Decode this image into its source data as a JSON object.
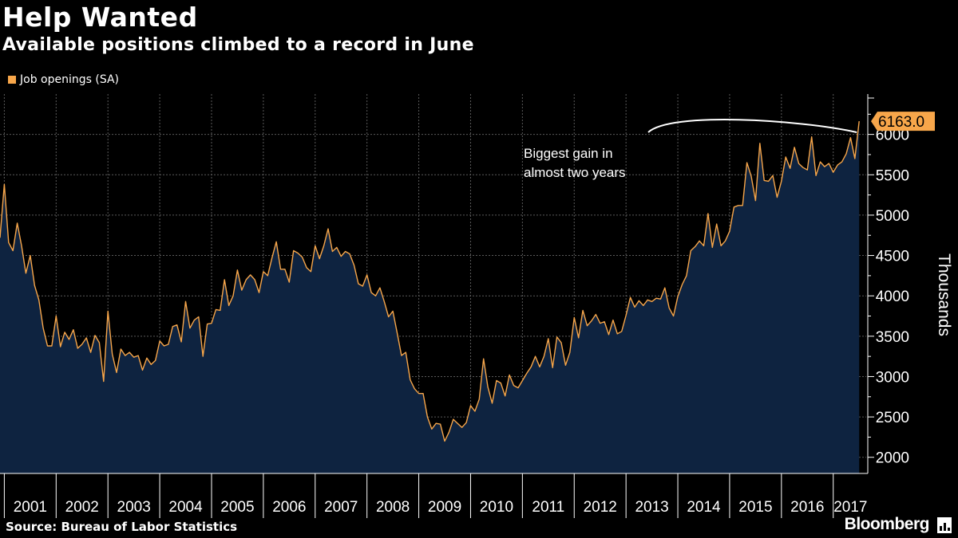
{
  "chart_data": {
    "type": "area",
    "title": "Help Wanted",
    "subtitle": "Available positions climbed to a record in June",
    "legend": [
      {
        "name": "Job openings (SA)",
        "color": "#F7A64A"
      }
    ],
    "legend_position": "top-left",
    "ylabel": "Thousands",
    "ylim": [
      1800,
      6500
    ],
    "yticks": [
      2000,
      2500,
      3000,
      3500,
      4000,
      4500,
      5000,
      5500,
      6000
    ],
    "ytick_labels": [
      "2000",
      "2500",
      "3000",
      "3500",
      "4000",
      "4500",
      "5000",
      "5500",
      "6000"
    ],
    "y_axis_side": "right",
    "xlim": [
      2000.9167,
      2017.6667
    ],
    "x_tick_labels": [
      "2001",
      "2002",
      "2003",
      "2004",
      "2005",
      "2006",
      "2007",
      "2008",
      "2009",
      "2010",
      "2011",
      "2012",
      "2013",
      "2014",
      "2015",
      "2016",
      "2017"
    ],
    "grid": true,
    "line_color": "#F7A64A",
    "fill_color": "#0E2340",
    "last_value_label": "6163.0",
    "annotation": {
      "text": [
        "Biggest gain in",
        "almost two years"
      ]
    },
    "series": [
      {
        "name": "Job openings (SA)",
        "start": "2000-12",
        "frequency": "monthly",
        "values": [
          4720,
          5380,
          4660,
          4560,
          4900,
          4620,
          4280,
          4500,
          4130,
          3950,
          3600,
          3380,
          3380,
          3750,
          3370,
          3550,
          3460,
          3580,
          3350,
          3400,
          3480,
          3300,
          3510,
          3420,
          2940,
          3810,
          3280,
          3050,
          3340,
          3260,
          3300,
          3240,
          3260,
          3080,
          3230,
          3150,
          3200,
          3440,
          3380,
          3400,
          3620,
          3640,
          3430,
          3930,
          3600,
          3700,
          3740,
          3250,
          3650,
          3660,
          3830,
          3820,
          4200,
          3880,
          4000,
          4320,
          4070,
          4200,
          4260,
          4200,
          4040,
          4300,
          4250,
          4470,
          4670,
          4330,
          4330,
          4170,
          4560,
          4530,
          4480,
          4350,
          4300,
          4620,
          4460,
          4620,
          4830,
          4550,
          4600,
          4490,
          4550,
          4520,
          4380,
          4150,
          4120,
          4260,
          4040,
          4000,
          4100,
          3930,
          3740,
          3810,
          3540,
          3260,
          3300,
          2960,
          2850,
          2790,
          2790,
          2500,
          2350,
          2420,
          2410,
          2200,
          2310,
          2470,
          2420,
          2370,
          2430,
          2640,
          2570,
          2720,
          3220,
          2870,
          2670,
          2950,
          2920,
          2760,
          3020,
          2890,
          2860,
          2950,
          3040,
          3120,
          3250,
          3120,
          3250,
          3470,
          3110,
          3490,
          3420,
          3140,
          3300,
          3730,
          3480,
          3820,
          3630,
          3690,
          3770,
          3660,
          3680,
          3520,
          3700,
          3530,
          3560,
          3760,
          3980,
          3860,
          3940,
          3880,
          3950,
          3930,
          3970,
          3960,
          4100,
          3850,
          3750,
          3990,
          4140,
          4250,
          4560,
          4610,
          4680,
          4620,
          5020,
          4600,
          4890,
          4620,
          4680,
          4800,
          5100,
          5120,
          5120,
          5650,
          5480,
          5180,
          5890,
          5430,
          5420,
          5490,
          5220,
          5420,
          5720,
          5580,
          5840,
          5640,
          5590,
          5560,
          5970,
          5490,
          5660,
          5600,
          5640,
          5530,
          5620,
          5660,
          5760,
          5960,
          5700,
          6163
        ]
      }
    ]
  },
  "footer": {
    "source": "Source: Bureau of Labor Statistics",
    "brand": "Bloomberg"
  }
}
